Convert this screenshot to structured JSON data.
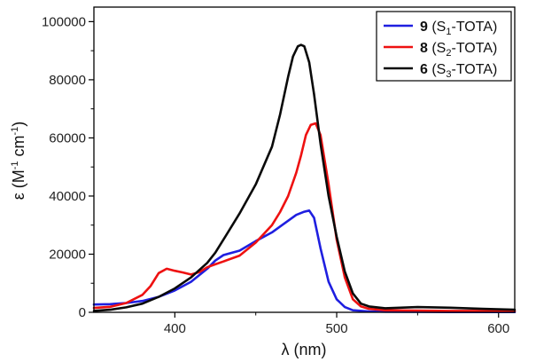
{
  "chart_data": {
    "type": "line",
    "title": "",
    "xlabel_symbol": "λ",
    "xlabel_unit": "(nm)",
    "ylabel_symbol": "ε",
    "ylabel_unit_base": "(M",
    "ylabel_sup1": "-1",
    "ylabel_unit_mid": " cm",
    "ylabel_sup2": "-1",
    "ylabel_unit_end": ")",
    "xlim": [
      350,
      610
    ],
    "ylim": [
      0,
      105000
    ],
    "x_ticks": [
      400,
      500,
      600
    ],
    "x_tick_labels": [
      "400",
      "500",
      "600"
    ],
    "y_ticks": [
      0,
      20000,
      40000,
      60000,
      80000,
      100000
    ],
    "y_tick_labels": [
      "0",
      "20000",
      "40000",
      "60000",
      "80000",
      "100000"
    ],
    "legend_position": "top-right",
    "series": [
      {
        "id": "s9",
        "bold": "9",
        "pre": " (S",
        "sub": "1",
        "post": "-TOTA)",
        "color": "#1f1fe0",
        "x": [
          350,
          360,
          370,
          380,
          390,
          400,
          410,
          420,
          425,
          430,
          440,
          450,
          460,
          470,
          475,
          480,
          483,
          486,
          490,
          495,
          500,
          505,
          510,
          520,
          530,
          550,
          570,
          590,
          610
        ],
        "y": [
          2700,
          2800,
          3200,
          3900,
          5300,
          7500,
          10500,
          15000,
          17800,
          19700,
          21200,
          24500,
          27500,
          31500,
          33500,
          34600,
          35000,
          32500,
          22000,
          10500,
          4500,
          1800,
          700,
          300,
          200,
          150,
          100,
          100,
          100
        ]
      },
      {
        "id": "s8",
        "bold": "8",
        "pre": " (S",
        "sub": "2",
        "post": "-TOTA)",
        "color": "#ee1111",
        "x": [
          350,
          360,
          370,
          380,
          385,
          390,
          395,
          400,
          405,
          410,
          415,
          420,
          425,
          430,
          440,
          450,
          460,
          465,
          470,
          475,
          478,
          481,
          484,
          487,
          490,
          495,
          500,
          505,
          510,
          515,
          520,
          530,
          550,
          570,
          590,
          610
        ],
        "y": [
          1500,
          1900,
          3200,
          6000,
          9000,
          13500,
          15000,
          14300,
          13700,
          13000,
          13800,
          15500,
          16500,
          17500,
          19500,
          24000,
          30000,
          34500,
          40000,
          48000,
          54000,
          61000,
          64500,
          65000,
          61000,
          44000,
          25000,
          12000,
          4500,
          2000,
          1200,
          700,
          600,
          500,
          500,
          400
        ]
      },
      {
        "id": "s6",
        "bold": "6",
        "pre": " (S",
        "sub": "3",
        "post": "-TOTA)",
        "color": "#0a0a0a",
        "x": [
          350,
          360,
          370,
          380,
          390,
          400,
          410,
          420,
          425,
          430,
          440,
          450,
          460,
          465,
          470,
          473,
          476,
          478,
          480,
          483,
          486,
          490,
          495,
          500,
          505,
          510,
          515,
          520,
          530,
          550,
          570,
          590,
          610
        ],
        "y": [
          500,
          900,
          1700,
          3000,
          5300,
          8200,
          12000,
          17000,
          20500,
          25000,
          34000,
          44000,
          57000,
          68000,
          81000,
          88000,
          91500,
          92000,
          91500,
          86000,
          75000,
          58000,
          40000,
          26000,
          14000,
          6500,
          3000,
          2000,
          1400,
          1800,
          1600,
          1200,
          900
        ]
      }
    ]
  }
}
